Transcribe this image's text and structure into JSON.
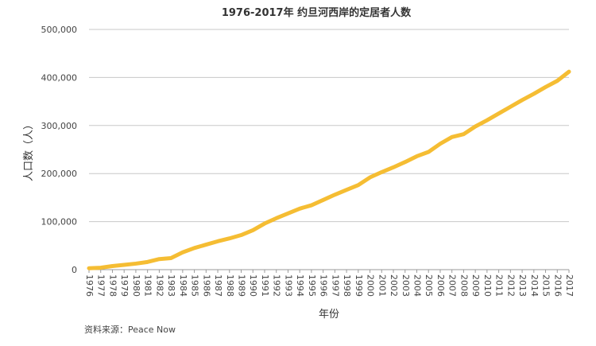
{
  "chart_data": {
    "type": "line",
    "title": "1976-2017年 约旦河西岸的定居者人数",
    "xlabel": "年份",
    "ylabel": "人口数（人）",
    "source": "资料来源：Peace Now",
    "ylim": [
      0,
      500000
    ],
    "y_ticks": [
      0,
      100000,
      200000,
      300000,
      400000,
      500000
    ],
    "y_tick_labels": [
      "0",
      "100,000",
      "200,000",
      "300,000",
      "400,000",
      "500,000"
    ],
    "grid": true,
    "line_color": "#f5bd33",
    "x": [
      "1976",
      "1977",
      "1978",
      "1979",
      "1980",
      "1981",
      "1982",
      "1983",
      "1984",
      "1985",
      "1986",
      "1987",
      "1988",
      "1989",
      "1990",
      "1991",
      "1992",
      "1993",
      "1994",
      "1995",
      "1996",
      "1997",
      "1998",
      "1999",
      "2000",
      "2001",
      "2002",
      "2003",
      "2004",
      "2005",
      "2006",
      "2007",
      "2008",
      "2009",
      "2010",
      "2011",
      "2012",
      "2013",
      "2014",
      "2015",
      "2016",
      "2017"
    ],
    "series": [
      {
        "values": [
          3000,
          4000,
          7500,
          10000,
          12500,
          16000,
          22000,
          24000,
          36000,
          45000,
          52000,
          59000,
          65000,
          72000,
          82000,
          96000,
          107000,
          117000,
          127000,
          134000,
          145000,
          156000,
          166000,
          176000,
          192000,
          203000,
          213000,
          224000,
          236000,
          245000,
          262000,
          276000,
          282000,
          298000,
          311000,
          325000,
          339000,
          353000,
          366000,
          380000,
          393000,
          412000
        ]
      }
    ]
  }
}
